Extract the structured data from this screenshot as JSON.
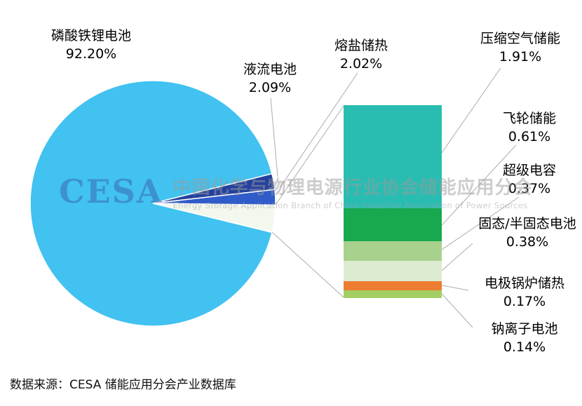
{
  "chart_data": {
    "type": "pie",
    "variant": "bar-of-pie",
    "pie_slices": [
      {
        "label": "磷酸铁锂电池",
        "pct": "92.20%",
        "value": 92.2,
        "color": "#41C2F0"
      },
      {
        "label": "液流电池",
        "pct": "2.09%",
        "value": 2.09,
        "color": "#24419E"
      },
      {
        "label": "熔盐储热",
        "pct": "2.02%",
        "value": 2.02,
        "color": "#2F5CC9"
      }
    ],
    "breakout_color": "#F2F8EE",
    "bar_segments": [
      {
        "label": "压缩空气储能",
        "pct": "1.91%",
        "value": 1.91,
        "color": "#29BDB2"
      },
      {
        "label": "飞轮储能",
        "pct": "0.61%",
        "value": 0.61,
        "color": "#18A84F"
      },
      {
        "label": "超级电容",
        "pct": "0.37%",
        "value": 0.37,
        "color": "#A9D18E"
      },
      {
        "label": "固态/半固态电池",
        "pct": "0.38%",
        "value": 0.38,
        "color": "#DDEBD1"
      },
      {
        "label": "电极锅炉储热",
        "pct": "0.17%",
        "value": 0.17,
        "color": "#ED7D31"
      },
      {
        "label": "钠离子电池",
        "pct": "0.14%",
        "value": 0.14,
        "color": "#A3CF62"
      }
    ],
    "legend_position": "callout-labels",
    "grid": false,
    "source_note": "数据来源：CESA 储能应用分会产业数据库",
    "watermark": {
      "logo": "CESA",
      "cn": "中国化学与物理电源行业协会储能应用分会",
      "en": "Energy Storage Application Branch of China Industrial Association of Power Sources"
    }
  }
}
